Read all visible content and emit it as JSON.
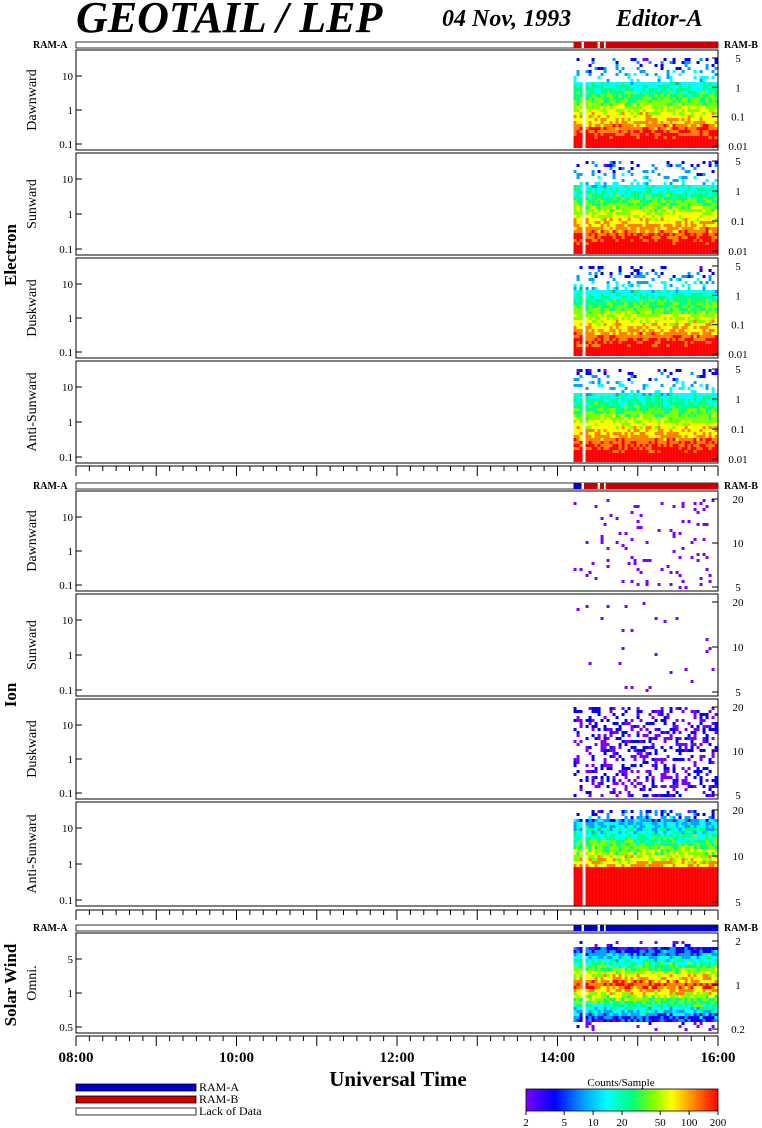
{
  "header": {
    "title": "GEOTAIL / LEP",
    "date": "04 Nov, 1993",
    "editor": "Editor-A"
  },
  "chart_data": {
    "type": "heatmap",
    "xlabel": "Universal Time",
    "x_ticks": [
      "08:00",
      "10:00",
      "12:00",
      "14:00",
      "16:00"
    ],
    "x_range_hours": [
      8,
      16
    ],
    "data_start_hour": 14.2,
    "gaps_hours": [
      [
        14.3,
        14.33
      ],
      [
        14.5,
        14.53
      ],
      [
        14.58,
        14.6
      ]
    ],
    "colors": {
      "ram_a": "#0000cc",
      "ram_b": "#cc0000",
      "scale": [
        "#7b00ff",
        "#0000ff",
        "#00a0ff",
        "#00ffff",
        "#00ff80",
        "#80ff00",
        "#ffff00",
        "#ff8000",
        "#ff0000"
      ]
    },
    "groups": [
      {
        "name": "Electron",
        "ram_left": "RAM-A",
        "ram_right": "RAM-B",
        "ram_bar": [
          {
            "from": 14.2,
            "to": 14.6,
            "mode": "RAM-B"
          },
          {
            "from": 14.6,
            "to": 16.0,
            "mode": "RAM-B"
          }
        ],
        "panels": [
          {
            "label": "Dawnward",
            "left_ticks": [
              "10",
              "1",
              "0.1"
            ],
            "right_ticks": [
              "5",
              "1",
              "0.1",
              "0.01"
            ]
          },
          {
            "label": "Sunward",
            "left_ticks": [
              "10",
              "1",
              "0.1"
            ],
            "right_ticks": [
              "5",
              "1",
              "0.1",
              "0.01"
            ]
          },
          {
            "label": "Duskward",
            "left_ticks": [
              "10",
              "1",
              "0.1"
            ],
            "right_ticks": [
              "5",
              "1",
              "0.1",
              "0.01"
            ]
          },
          {
            "label": "Anti-Sunward",
            "left_ticks": [
              "10",
              "1",
              "0.1"
            ],
            "right_ticks": [
              "5",
              "1",
              "0.1",
              "0.01"
            ]
          }
        ]
      },
      {
        "name": "Ion",
        "ram_left": "RAM-A",
        "ram_right": "RAM-B",
        "ram_bar": [
          {
            "from": 14.2,
            "to": 14.3,
            "mode": "RAM-A"
          },
          {
            "from": 14.3,
            "to": 16.0,
            "mode": "RAM-B"
          }
        ],
        "panels": [
          {
            "label": "Dawnward",
            "left_ticks": [
              "10",
              "1",
              "0.1"
            ],
            "right_ticks": [
              "20",
              "10",
              "5"
            ]
          },
          {
            "label": "Sunward",
            "left_ticks": [
              "10",
              "1",
              "0.1"
            ],
            "right_ticks": [
              "20",
              "10",
              "5"
            ]
          },
          {
            "label": "Duskward",
            "left_ticks": [
              "10",
              "1",
              "0.1"
            ],
            "right_ticks": [
              "20",
              "10",
              "5"
            ]
          },
          {
            "label": "Anti-Sunward",
            "left_ticks": [
              "10",
              "1",
              "0.1"
            ],
            "right_ticks": [
              "20",
              "10",
              "5"
            ]
          }
        ]
      },
      {
        "name": "Solar Wind",
        "ram_left": "RAM-A",
        "ram_right": "RAM-B",
        "ram_bar": [
          {
            "from": 14.2,
            "to": 16.0,
            "mode": "RAM-A"
          }
        ],
        "panels": [
          {
            "label": "Omni.",
            "left_ticks": [
              "5",
              "1",
              "0.5"
            ],
            "right_ticks": [
              "2",
              "1",
              "0.2"
            ]
          }
        ]
      }
    ],
    "legend": {
      "items": [
        "RAM-A",
        "RAM-B",
        "Lack of Data"
      ]
    },
    "colorbar": {
      "label": "Counts/Sample",
      "ticks": [
        "2",
        "5",
        "10",
        "20",
        "50",
        "100",
        "200"
      ],
      "range": [
        2,
        200
      ],
      "scale": "log"
    }
  }
}
